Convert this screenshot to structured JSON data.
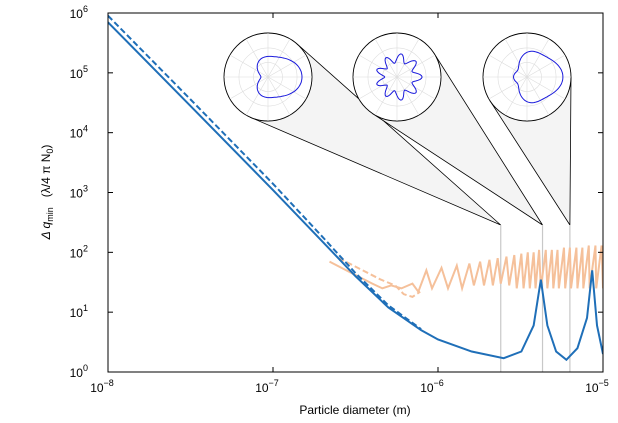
{
  "chart_data": {
    "type": "line",
    "x_label": "Particle diameter (m)",
    "y_label": {
      "quantity": "Δ q",
      "quantity_sub": "min",
      "unit": "(λ/4 π N",
      "unit_sub": "0",
      "unit_end": ")"
    },
    "xscale": "log",
    "yscale": "log",
    "xlim": [
      1e-08,
      1e-05
    ],
    "ylim": [
      1,
      1000000
    ],
    "xticks": [
      {
        "value": 1e-08,
        "label": "10",
        "exponent": "−8"
      },
      {
        "value": 1e-07,
        "label": "10",
        "exponent": "−7"
      },
      {
        "value": 1e-06,
        "label": "10",
        "exponent": "−6"
      },
      {
        "value": 1e-05,
        "label": "10",
        "exponent": "−5"
      }
    ],
    "yticks": [
      {
        "value": 1,
        "label": "10",
        "exponent": "0"
      },
      {
        "value": 10,
        "label": "10",
        "exponent": "1"
      },
      {
        "value": 100,
        "label": "10",
        "exponent": "2"
      },
      {
        "value": 1000,
        "label": "10",
        "exponent": "3"
      },
      {
        "value": 10000,
        "label": "10",
        "exponent": "4"
      },
      {
        "value": 100000,
        "label": "10",
        "exponent": "5"
      },
      {
        "value": 1000000,
        "label": "10",
        "exponent": "6"
      }
    ],
    "markers": [
      2.4e-06,
      4.3e-06,
      6.3e-06
    ],
    "marker_color": "#c8c8c8",
    "series": [
      {
        "color": "#f5c09a",
        "dash": false,
        "x": [
          2.2e-07,
          3e-07,
          4e-07,
          4.6e-07,
          5.2e-07,
          6e-07,
          7e-07,
          7.6e-07,
          8.5e-07,
          9.2e-07,
          1.05e-06,
          1.15e-06,
          1.3e-06,
          1.4e-06,
          1.55e-06,
          1.65e-06,
          1.8e-06,
          1.9e-06,
          2.05e-06,
          2.15e-06,
          2.3e-06,
          2.4e-06,
          2.6e-06,
          2.7e-06,
          2.9e-06,
          3e-06,
          3.2e-06,
          3.3e-06,
          3.5e-06,
          3.6e-06,
          3.8e-06,
          3.9e-06,
          4.1e-06,
          4.2e-06,
          4.5e-06,
          4.6e-06,
          4.9e-06,
          5e-06,
          5.3e-06,
          5.4e-06,
          5.8e-06,
          5.9e-06,
          6.3e-06,
          6.4e-06,
          6.9e-06,
          7e-06,
          7.5e-06,
          7.6e-06,
          8.2e-06,
          8.3e-06,
          9e-06,
          9.1e-06,
          9.8e-06,
          1e-05
        ],
        "values": [
          70,
          45,
          30,
          25,
          28,
          25,
          30,
          22,
          50,
          25,
          55,
          25,
          60,
          25,
          65,
          28,
          70,
          28,
          75,
          28,
          80,
          30,
          85,
          28,
          90,
          25,
          95,
          25,
          100,
          25,
          100,
          25,
          110,
          25,
          110,
          25,
          110,
          25,
          110,
          25,
          120,
          25,
          120,
          25,
          120,
          25,
          120,
          25,
          130,
          25,
          130,
          25,
          130,
          25
        ]
      },
      {
        "color": "#f5c09a",
        "dash": true,
        "x": [
          2.5e-07,
          3.5e-07,
          4.5e-07,
          5.5e-07,
          6.2e-07,
          7e-07,
          7.8e-07
        ],
        "values": [
          80,
          50,
          35,
          28,
          20,
          18,
          22
        ]
      },
      {
        "color": "#1f6fb8",
        "dash": false,
        "x": [
          1e-08,
          3.16e-08,
          1e-07,
          2e-07,
          3.16e-07,
          5e-07,
          7.9e-07,
          1e-06,
          1.6e-06,
          2.5e-06,
          3.2e-06,
          3.8e-06,
          4.2e-06,
          4.6e-06,
          5.2e-06,
          6e-06,
          7e-06,
          8e-06,
          8.6e-06,
          9.2e-06,
          1e-05
        ],
        "values": [
          700000,
          28000,
          1100,
          150,
          40,
          12,
          5,
          3.5,
          2.2,
          1.7,
          2.2,
          6,
          35,
          6,
          2.2,
          1.6,
          2.5,
          8,
          50,
          6,
          2
        ]
      },
      {
        "color": "#1f6fb8",
        "dash": true,
        "x": [
          1e-08,
          3.16e-08,
          1e-07,
          2e-07,
          3.16e-07,
          5e-07,
          7.9e-07
        ],
        "values": [
          900000,
          36000,
          1400,
          180,
          45,
          13,
          5.2
        ]
      }
    ]
  }
}
